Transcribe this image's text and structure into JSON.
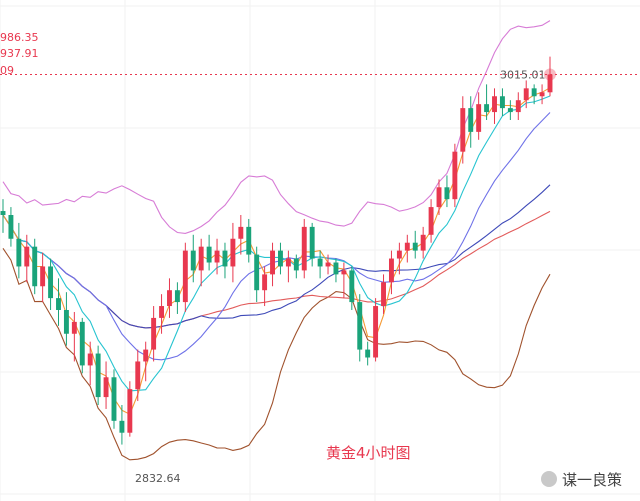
{
  "chart_data": {
    "type": "candlestick",
    "title": "黄金4小时图",
    "watermark": "谋一良策",
    "top_left_values": [
      "986.35",
      "937.91",
      "09"
    ],
    "price_tag": "3015.01",
    "low_label": "2832.64",
    "colors": {
      "up": "#e8384f",
      "down": "#1aa37a",
      "bb": "#d77cd6",
      "ma_orange": "#f59a34",
      "ma_cyan": "#27c4d0",
      "ma_blue": "#6f72e8",
      "ma_navy": "#3e4ab8",
      "ma_red": "#e25b5b",
      "bb_lower": "#a0522d",
      "price_line": "#e8384f",
      "label_text": "#e8384f",
      "watermark": "#444444"
    },
    "candles": [
      [
        2946,
        2952,
        2935,
        2944
      ],
      [
        2944,
        2948,
        2928,
        2932
      ],
      [
        2932,
        2940,
        2912,
        2918
      ],
      [
        2918,
        2934,
        2910,
        2928
      ],
      [
        2928,
        2932,
        2904,
        2908
      ],
      [
        2908,
        2925,
        2900,
        2918
      ],
      [
        2918,
        2922,
        2896,
        2902
      ],
      [
        2902,
        2912,
        2888,
        2896
      ],
      [
        2896,
        2905,
        2878,
        2884
      ],
      [
        2884,
        2895,
        2870,
        2890
      ],
      [
        2890,
        2892,
        2864,
        2868
      ],
      [
        2868,
        2880,
        2858,
        2874
      ],
      [
        2874,
        2878,
        2848,
        2852
      ],
      [
        2852,
        2870,
        2846,
        2862
      ],
      [
        2862,
        2866,
        2836,
        2840
      ],
      [
        2840,
        2848,
        2828,
        2834
      ],
      [
        2834,
        2860,
        2832,
        2856
      ],
      [
        2856,
        2876,
        2850,
        2870
      ],
      [
        2870,
        2880,
        2860,
        2876
      ],
      [
        2876,
        2898,
        2870,
        2892
      ],
      [
        2892,
        2904,
        2884,
        2898
      ],
      [
        2898,
        2912,
        2892,
        2906
      ],
      [
        2906,
        2910,
        2894,
        2900
      ],
      [
        2900,
        2930,
        2895,
        2926
      ],
      [
        2926,
        2934,
        2910,
        2916
      ],
      [
        2916,
        2932,
        2908,
        2928
      ],
      [
        2928,
        2934,
        2916,
        2920
      ],
      [
        2920,
        2932,
        2914,
        2926
      ],
      [
        2926,
        2930,
        2912,
        2918
      ],
      [
        2918,
        2940,
        2910,
        2932
      ],
      [
        2932,
        2944,
        2924,
        2938
      ],
      [
        2938,
        2942,
        2920,
        2924
      ],
      [
        2924,
        2928,
        2900,
        2906
      ],
      [
        2906,
        2918,
        2898,
        2914
      ],
      [
        2914,
        2930,
        2908,
        2926
      ],
      [
        2926,
        2930,
        2914,
        2918
      ],
      [
        2918,
        2926,
        2910,
        2922
      ],
      [
        2922,
        2924,
        2912,
        2916
      ],
      [
        2916,
        2942,
        2912,
        2938
      ],
      [
        2938,
        2940,
        2918,
        2922
      ],
      [
        2922,
        2926,
        2912,
        2918
      ],
      [
        2918,
        2924,
        2914,
        2920
      ],
      [
        2920,
        2922,
        2910,
        2914
      ],
      [
        2914,
        2920,
        2902,
        2916
      ],
      [
        2916,
        2918,
        2896,
        2900
      ],
      [
        2900,
        2904,
        2870,
        2876
      ],
      [
        2876,
        2880,
        2868,
        2872
      ],
      [
        2872,
        2902,
        2870,
        2898
      ],
      [
        2898,
        2914,
        2894,
        2910
      ],
      [
        2910,
        2926,
        2904,
        2922
      ],
      [
        2922,
        2930,
        2914,
        2926
      ],
      [
        2926,
        2934,
        2920,
        2930
      ],
      [
        2930,
        2936,
        2922,
        2926
      ],
      [
        2926,
        2938,
        2922,
        2934
      ],
      [
        2934,
        2952,
        2930,
        2948
      ],
      [
        2948,
        2962,
        2944,
        2958
      ],
      [
        2958,
        2964,
        2948,
        2952
      ],
      [
        2952,
        2980,
        2948,
        2976
      ],
      [
        2976,
        3004,
        2970,
        2998
      ],
      [
        2998,
        3004,
        2978,
        2986
      ],
      [
        2986,
        3006,
        2982,
        3000
      ],
      [
        3000,
        3010,
        2992,
        2996
      ],
      [
        2996,
        3008,
        2990,
        3004
      ],
      [
        3004,
        3008,
        2994,
        2998
      ],
      [
        2998,
        3002,
        2992,
        2996
      ],
      [
        2996,
        3006,
        2992,
        3002
      ],
      [
        3002,
        3012,
        2998,
        3008
      ],
      [
        3008,
        3010,
        3000,
        3004
      ],
      [
        3004,
        3010,
        3000,
        3006
      ],
      [
        3006,
        3024,
        3004,
        3015
      ]
    ]
  }
}
